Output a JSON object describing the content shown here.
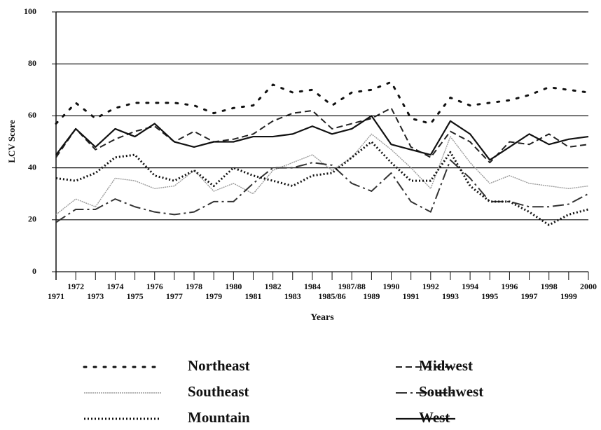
{
  "chart_data": {
    "type": "line",
    "y_label": "LCV Score",
    "x_label": "Years",
    "categories": [
      "1971",
      "1972",
      "1973",
      "1974",
      "1975",
      "1976",
      "1977",
      "1978",
      "1979",
      "1980",
      "1981",
      "1982",
      "1983",
      "1984",
      "1985/86",
      "1987/88",
      "1989",
      "1990",
      "1991",
      "1992",
      "1993",
      "1994",
      "1995",
      "1996",
      "1997",
      "1998",
      "1999",
      "2000"
    ],
    "series": [
      {
        "name": "Northeast",
        "color": "#111111",
        "values": [
          57,
          65,
          59,
          63,
          65,
          65,
          65,
          64,
          61,
          63,
          64,
          72,
          69,
          70,
          64,
          69,
          70,
          73,
          59,
          57,
          67,
          64,
          65,
          66,
          68,
          71,
          70,
          69
        ]
      },
      {
        "name": "Midwest",
        "color": "#222222",
        "values": [
          44,
          55,
          47,
          51,
          54,
          56,
          50,
          54,
          50,
          51,
          53,
          58,
          61,
          62,
          55,
          57,
          59,
          63,
          48,
          44,
          54,
          50,
          42,
          50,
          49,
          53,
          48,
          49
        ]
      },
      {
        "name": "Southeast",
        "color": "#9a9a9a",
        "values": [
          22,
          28,
          25,
          36,
          35,
          32,
          33,
          39,
          31,
          34,
          30,
          39,
          42,
          45,
          39,
          44,
          53,
          47,
          40,
          32,
          52,
          42,
          34,
          37,
          34,
          33,
          32,
          33
        ]
      },
      {
        "name": "Southwest",
        "color": "#333333",
        "values": [
          19,
          24,
          24,
          28,
          25,
          23,
          22,
          23,
          27,
          27,
          34,
          40,
          40,
          42,
          41,
          34,
          31,
          38,
          27,
          23,
          43,
          36,
          27,
          27,
          25,
          25,
          26,
          30
        ]
      },
      {
        "name": "Mountain",
        "color": "#111111",
        "values": [
          36,
          35,
          38,
          44,
          45,
          37,
          35,
          39,
          33,
          40,
          37,
          35,
          33,
          37,
          38,
          44,
          50,
          42,
          35,
          35,
          46,
          33,
          27,
          27,
          23,
          18,
          22,
          24
        ]
      },
      {
        "name": "West",
        "color": "#111111",
        "values": [
          45,
          55,
          48,
          55,
          52,
          57,
          50,
          48,
          50,
          50,
          52,
          52,
          53,
          56,
          53,
          55,
          60,
          49,
          47,
          45,
          58,
          53,
          43,
          48,
          53,
          49,
          51,
          52
        ]
      }
    ],
    "ylim": [
      0,
      100
    ],
    "yticks": [
      0,
      20,
      40,
      60,
      80,
      100
    ],
    "grid": true
  }
}
